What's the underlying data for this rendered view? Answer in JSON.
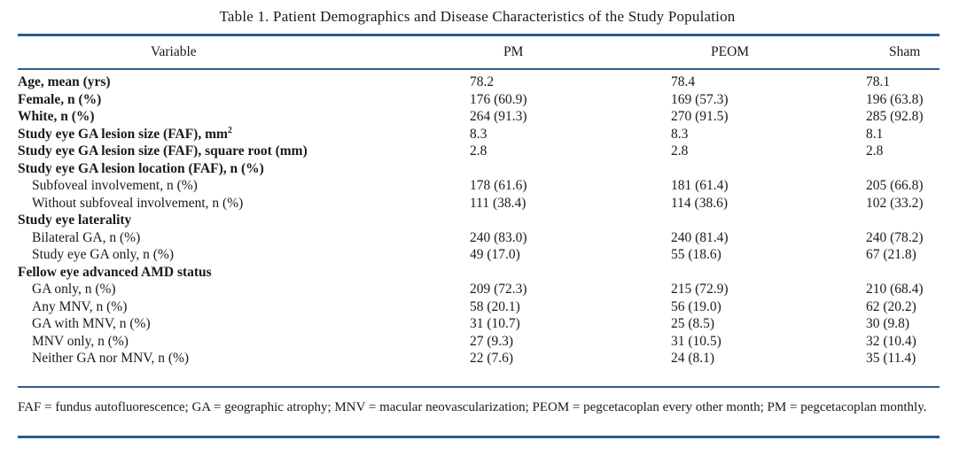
{
  "caption": "Table 1. Patient Demographics and Disease Characteristics of the Study Population",
  "headers": [
    "Variable",
    "PM",
    "PEOM",
    "Sham"
  ],
  "rows": [
    {
      "label": "Age, mean (yrs)",
      "bold": true,
      "indent": false,
      "pm": "78.2",
      "peom": "78.4",
      "sham": "78.1"
    },
    {
      "label": "Female, n (%)",
      "bold": true,
      "indent": false,
      "pm": "176 (60.9)",
      "peom": "169 (57.3)",
      "sham": "196 (63.8)"
    },
    {
      "label": "White, n (%)",
      "bold": true,
      "indent": false,
      "pm": "264 (91.3)",
      "peom": "270 (91.5)",
      "sham": "285 (92.8)"
    },
    {
      "label": "Study eye GA lesion size (FAF), mm",
      "sup": "2",
      "bold": true,
      "indent": false,
      "pm": "8.3",
      "peom": "8.3",
      "sham": "8.1"
    },
    {
      "label": "Study eye GA lesion size (FAF), square root (mm)",
      "bold": true,
      "indent": false,
      "pm": "2.8",
      "peom": "2.8",
      "sham": "2.8"
    },
    {
      "label": "Study eye GA lesion location (FAF), n (%)",
      "bold": true,
      "indent": false,
      "pm": "",
      "peom": "",
      "sham": ""
    },
    {
      "label": "Subfoveal involvement, n (%)",
      "bold": false,
      "indent": true,
      "pm": "178 (61.6)",
      "peom": "181 (61.4)",
      "sham": "205 (66.8)"
    },
    {
      "label": "Without subfoveal involvement, n (%)",
      "bold": false,
      "indent": true,
      "pm": "111 (38.4)",
      "peom": "114 (38.6)",
      "sham": "102 (33.2)"
    },
    {
      "label": "Study eye laterality",
      "bold": true,
      "indent": false,
      "pm": "",
      "peom": "",
      "sham": ""
    },
    {
      "label": "Bilateral GA, n (%)",
      "bold": false,
      "indent": true,
      "pm": "240 (83.0)",
      "peom": "240 (81.4)",
      "sham": "240 (78.2)"
    },
    {
      "label": "Study eye GA only, n (%)",
      "bold": false,
      "indent": true,
      "pm": "49 (17.0)",
      "peom": "55 (18.6)",
      "sham": "67 (21.8)"
    },
    {
      "label": "Fellow eye advanced AMD status",
      "bold": true,
      "indent": false,
      "pm": "",
      "peom": "",
      "sham": ""
    },
    {
      "label": "GA only, n (%)",
      "bold": false,
      "indent": true,
      "pm": "209 (72.3)",
      "peom": "215 (72.9)",
      "sham": "210 (68.4)"
    },
    {
      "label": "Any MNV, n (%)",
      "bold": false,
      "indent": true,
      "pm": "58 (20.1)",
      "peom": "56 (19.0)",
      "sham": "62 (20.2)"
    },
    {
      "label": "GA with MNV, n (%)",
      "bold": false,
      "indent": true,
      "pm": "31 (10.7)",
      "peom": "25 (8.5)",
      "sham": "30 (9.8)"
    },
    {
      "label": "MNV only, n (%)",
      "bold": false,
      "indent": true,
      "pm": "27 (9.3)",
      "peom": "31 (10.5)",
      "sham": "32 (10.4)"
    },
    {
      "label": "Neither GA nor MNV, n (%)",
      "bold": false,
      "indent": true,
      "pm": "22 (7.6)",
      "peom": "24 (8.1)",
      "sham": "35 (11.4)"
    }
  ],
  "footnote": "FAF = fundus autofluorescence; GA = geographic atrophy; MNV = macular neovascularization; PEOM = pegcetacoplan every other month; PM = pegcetacoplan monthly.",
  "colors": {
    "rule": "#2a5d8f",
    "text": "#1a1a1a"
  }
}
